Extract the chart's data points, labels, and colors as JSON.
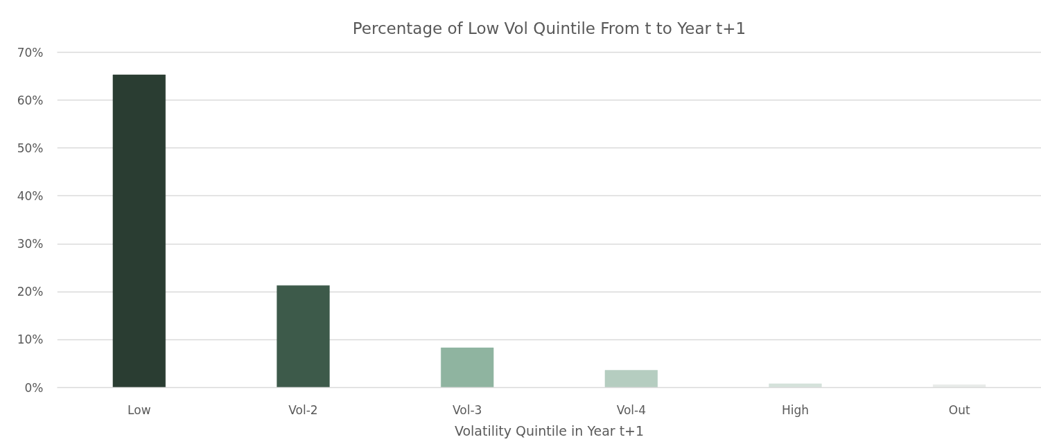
{
  "chart_data": {
    "type": "bar",
    "title": "Percentage of Low Vol Quintile From t to Year t+1",
    "xlabel": "Volatility Quintile in Year t+1",
    "categories": [
      "Low",
      "Vol-2",
      "Vol-3",
      "Vol-4",
      "High",
      "Out"
    ],
    "values": [
      65.3,
      21.3,
      8.3,
      3.6,
      0.8,
      0.6
    ],
    "colors": [
      "#2a3d32",
      "#3d5a4a",
      "#8fb4a0",
      "#b5cdc0",
      "#d5e2db",
      "#e8ebe9"
    ],
    "ylim": [
      0,
      70
    ],
    "yticks": [
      {
        "value": 0,
        "label": "0%"
      },
      {
        "value": 10,
        "label": "10%"
      },
      {
        "value": 20,
        "label": "20%"
      },
      {
        "value": 30,
        "label": "30%"
      },
      {
        "value": 40,
        "label": "40%"
      },
      {
        "value": 50,
        "label": "50%"
      },
      {
        "value": 60,
        "label": "60%"
      },
      {
        "value": 70,
        "label": "70%"
      }
    ],
    "grid": "y"
  }
}
